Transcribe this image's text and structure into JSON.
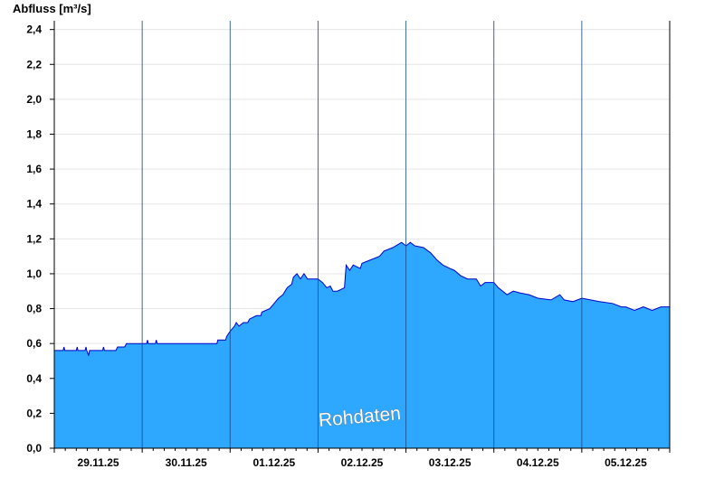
{
  "chart_data": {
    "type": "area",
    "ylabel": "Abfluss [m³/s]",
    "ylim": [
      0,
      2.45
    ],
    "yticks": [
      0,
      0.2,
      0.4,
      0.6,
      0.8,
      1.0,
      1.2,
      1.4,
      1.6,
      1.8,
      2.0,
      2.2,
      2.4
    ],
    "ytick_labels": [
      "0,0",
      "0,2",
      "0,4",
      "0,6",
      "0,8",
      "1,0",
      "1,2",
      "1,4",
      "1,6",
      "1,8",
      "2,0",
      "2,2",
      "2,4"
    ],
    "xlim": [
      0,
      7
    ],
    "x_unit": "days since start of plot (28.11.25 12:00)",
    "xtick_labels": [
      "29.11.25",
      "30.11.25",
      "01.12.25",
      "02.12.25",
      "03.12.25",
      "04.12.25",
      "05.12.25"
    ],
    "grid": true,
    "fill_color": "#2da7ff",
    "line_color": "#0000cc",
    "watermark": "Rohdaten",
    "series": [
      {
        "values": [
          [
            0.0,
            0.56
          ],
          [
            0.1,
            0.56
          ],
          [
            0.11,
            0.58
          ],
          [
            0.12,
            0.56
          ],
          [
            0.25,
            0.56
          ],
          [
            0.26,
            0.58
          ],
          [
            0.27,
            0.56
          ],
          [
            0.35,
            0.56
          ],
          [
            0.36,
            0.58
          ],
          [
            0.37,
            0.56
          ],
          [
            0.39,
            0.53
          ],
          [
            0.4,
            0.56
          ],
          [
            0.55,
            0.56
          ],
          [
            0.56,
            0.58
          ],
          [
            0.57,
            0.56
          ],
          [
            0.7,
            0.56
          ],
          [
            0.72,
            0.58
          ],
          [
            0.8,
            0.58
          ],
          [
            0.82,
            0.6
          ],
          [
            1.0,
            0.6
          ],
          [
            1.05,
            0.6
          ],
          [
            1.06,
            0.62
          ],
          [
            1.07,
            0.6
          ],
          [
            1.15,
            0.6
          ],
          [
            1.16,
            0.62
          ],
          [
            1.17,
            0.6
          ],
          [
            1.85,
            0.6
          ],
          [
            1.86,
            0.62
          ],
          [
            1.95,
            0.62
          ],
          [
            1.96,
            0.64
          ],
          [
            2.0,
            0.67
          ],
          [
            2.05,
            0.7
          ],
          [
            2.07,
            0.72
          ],
          [
            2.1,
            0.7
          ],
          [
            2.15,
            0.72
          ],
          [
            2.2,
            0.72
          ],
          [
            2.22,
            0.74
          ],
          [
            2.3,
            0.76
          ],
          [
            2.35,
            0.76
          ],
          [
            2.36,
            0.78
          ],
          [
            2.45,
            0.8
          ],
          [
            2.5,
            0.83
          ],
          [
            2.55,
            0.86
          ],
          [
            2.6,
            0.88
          ],
          [
            2.65,
            0.92
          ],
          [
            2.7,
            0.94
          ],
          [
            2.72,
            0.98
          ],
          [
            2.76,
            1.0
          ],
          [
            2.8,
            0.97
          ],
          [
            2.84,
            1.0
          ],
          [
            2.88,
            0.97
          ],
          [
            3.0,
            0.97
          ],
          [
            3.05,
            0.95
          ],
          [
            3.1,
            0.92
          ],
          [
            3.14,
            0.93
          ],
          [
            3.17,
            0.9
          ],
          [
            3.22,
            0.9
          ],
          [
            3.3,
            0.92
          ],
          [
            3.32,
            1.05
          ],
          [
            3.36,
            1.02
          ],
          [
            3.4,
            1.05
          ],
          [
            3.48,
            1.03
          ],
          [
            3.5,
            1.06
          ],
          [
            3.6,
            1.08
          ],
          [
            3.7,
            1.1
          ],
          [
            3.75,
            1.13
          ],
          [
            3.85,
            1.15
          ],
          [
            3.95,
            1.18
          ],
          [
            4.0,
            1.16
          ],
          [
            4.05,
            1.18
          ],
          [
            4.1,
            1.16
          ],
          [
            4.2,
            1.15
          ],
          [
            4.28,
            1.12
          ],
          [
            4.35,
            1.08
          ],
          [
            4.42,
            1.05
          ],
          [
            4.5,
            1.03
          ],
          [
            4.55,
            1.02
          ],
          [
            4.62,
            0.99
          ],
          [
            4.7,
            0.97
          ],
          [
            4.8,
            0.97
          ],
          [
            4.85,
            0.93
          ],
          [
            4.9,
            0.95
          ],
          [
            5.0,
            0.95
          ],
          [
            5.05,
            0.92
          ],
          [
            5.1,
            0.9
          ],
          [
            5.15,
            0.88
          ],
          [
            5.22,
            0.9
          ],
          [
            5.3,
            0.89
          ],
          [
            5.4,
            0.88
          ],
          [
            5.5,
            0.86
          ],
          [
            5.65,
            0.85
          ],
          [
            5.75,
            0.88
          ],
          [
            5.8,
            0.85
          ],
          [
            5.9,
            0.84
          ],
          [
            6.0,
            0.86
          ],
          [
            6.1,
            0.85
          ],
          [
            6.2,
            0.84
          ],
          [
            6.35,
            0.83
          ],
          [
            6.45,
            0.81
          ],
          [
            6.5,
            0.81
          ],
          [
            6.6,
            0.79
          ],
          [
            6.7,
            0.81
          ],
          [
            6.8,
            0.79
          ],
          [
            6.9,
            0.81
          ],
          [
            7.0,
            0.81
          ]
        ]
      }
    ]
  }
}
